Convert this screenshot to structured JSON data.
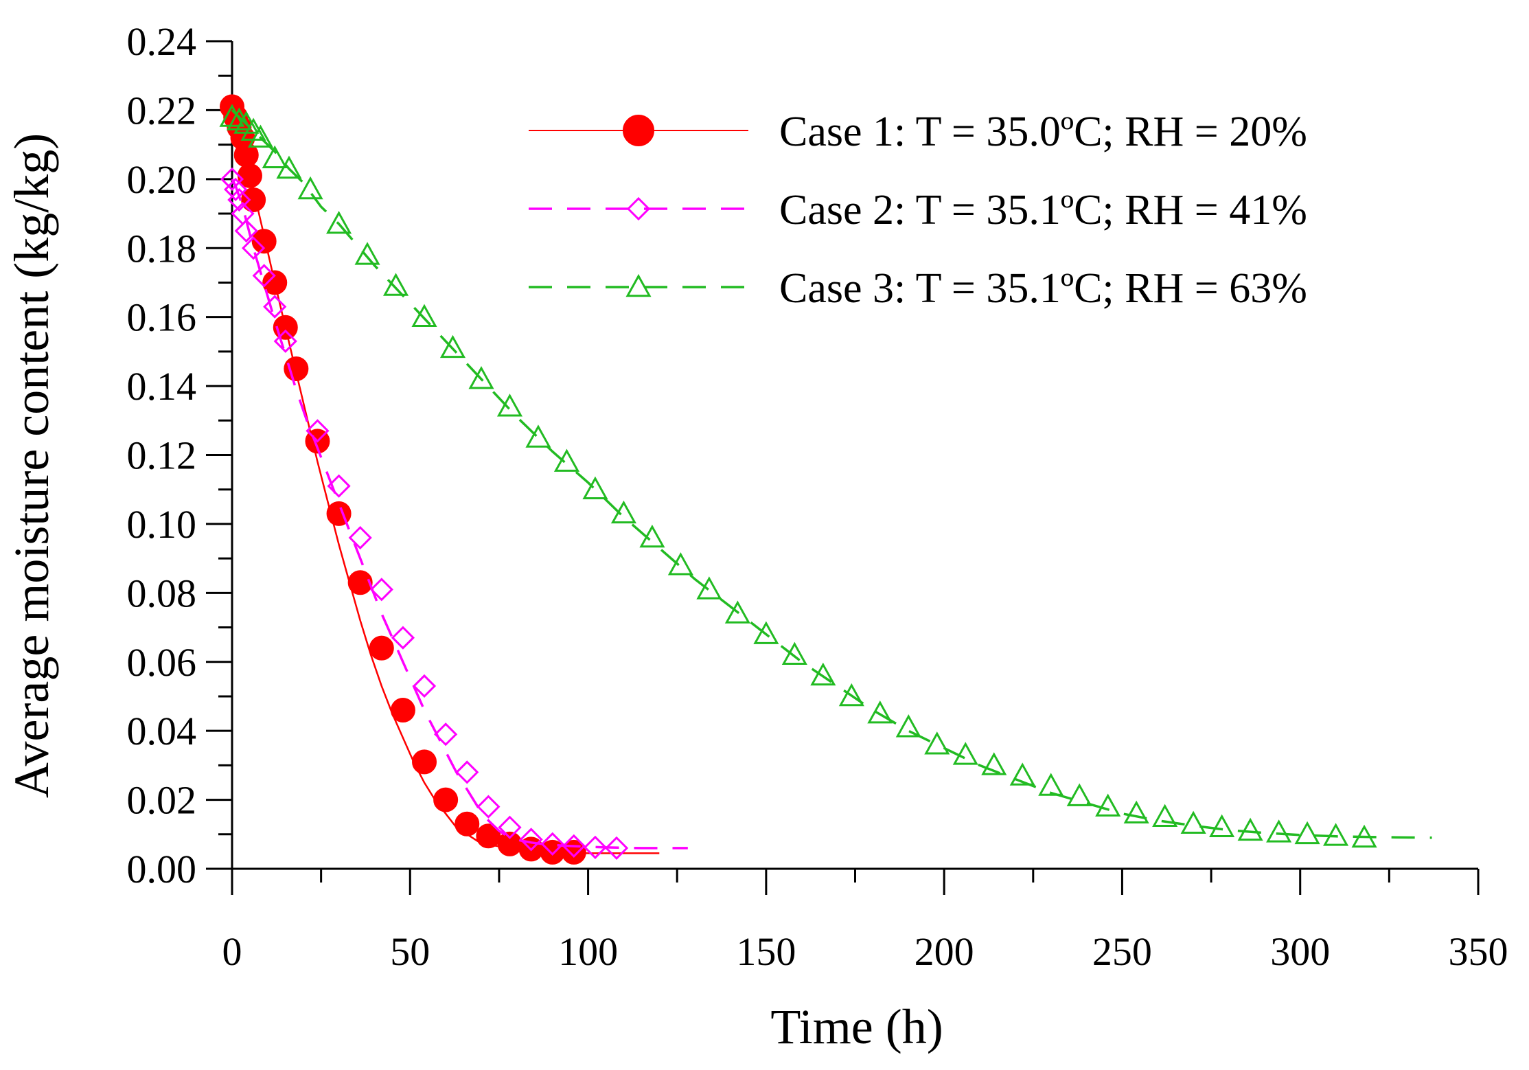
{
  "chart_data": {
    "type": "line",
    "title": "",
    "xlabel": "Time (h)",
    "ylabel": "Average moisture content (kg/kg)",
    "xlim": [
      0,
      350
    ],
    "ylim": [
      0,
      0.24
    ],
    "grid": false,
    "x_major_ticks": [
      0,
      50,
      100,
      150,
      200,
      250,
      300,
      350
    ],
    "x_tick_labels": [
      "0",
      "50",
      "100",
      "150",
      "200",
      "250",
      "300",
      "350"
    ],
    "y_major_ticks": [
      0,
      0.02,
      0.04,
      0.06,
      0.08,
      0.1,
      0.12,
      0.14,
      0.16,
      0.18,
      0.2,
      0.22,
      0.24
    ],
    "y_tick_labels": [
      "0.00",
      "0.02",
      "0.04",
      "0.06",
      "0.08",
      "0.10",
      "0.12",
      "0.14",
      "0.16",
      "0.18",
      "0.20",
      "0.22",
      "0.24"
    ],
    "legend_position": "top-right",
    "series": [
      {
        "name": "Case 1: T = 35.0oC; RH = 20%",
        "legend_label": "Case 1: T = 35.0ºC; RH = 20%",
        "color": "#ff0000",
        "line_style": "solid",
        "marker": "filled-circle",
        "curve_x": [
          0,
          1,
          2,
          3,
          4,
          5,
          6,
          8,
          10,
          12,
          15,
          18,
          21,
          24,
          27,
          30,
          33,
          36,
          39,
          42,
          45,
          48,
          51,
          54,
          57,
          60,
          63,
          66,
          69,
          72,
          75,
          78,
          81,
          84,
          87,
          90,
          93,
          96,
          100,
          105,
          110,
          115,
          120
        ],
        "curve_y": [
          0.221,
          0.218,
          0.215,
          0.211,
          0.207,
          0.202,
          0.197,
          0.188,
          0.179,
          0.17,
          0.157,
          0.144,
          0.131,
          0.118,
          0.106,
          0.094,
          0.083,
          0.072,
          0.062,
          0.053,
          0.045,
          0.038,
          0.031,
          0.025,
          0.02,
          0.016,
          0.012,
          0.01,
          0.008,
          0.007,
          0.0065,
          0.006,
          0.0055,
          0.005,
          0.005,
          0.0048,
          0.0047,
          0.0046,
          0.0045,
          0.0045,
          0.0045,
          0.0045,
          0.0045
        ],
        "points_x": [
          0,
          1,
          2,
          3,
          4,
          5,
          6,
          9,
          12,
          15,
          18,
          24,
          30,
          36,
          42,
          48,
          54,
          60,
          66,
          72,
          78,
          84,
          90,
          96
        ],
        "points_y": [
          0.221,
          0.218,
          0.215,
          0.212,
          0.207,
          0.201,
          0.194,
          0.182,
          0.17,
          0.157,
          0.145,
          0.124,
          0.103,
          0.083,
          0.064,
          0.046,
          0.031,
          0.02,
          0.013,
          0.0095,
          0.0072,
          0.0057,
          0.0048,
          0.0048
        ]
      },
      {
        "name": "Case 2: T = 35.1oC; RH = 41%",
        "legend_label": "Case 2: T = 35.1ºC; RH = 41%",
        "color": "#ff00ff",
        "line_style": "dashed",
        "marker": "open-diamond",
        "curve_x": [
          0,
          1,
          2,
          3,
          4,
          5,
          6,
          8,
          10,
          12,
          15,
          18,
          21,
          24,
          27,
          30,
          33,
          36,
          39,
          42,
          45,
          48,
          51,
          54,
          57,
          60,
          63,
          66,
          69,
          72,
          75,
          78,
          81,
          84,
          87,
          90,
          95,
          100,
          105,
          110,
          115,
          120,
          128
        ],
        "curve_y": [
          0.2,
          0.198,
          0.195,
          0.192,
          0.188,
          0.184,
          0.18,
          0.173,
          0.166,
          0.159,
          0.149,
          0.139,
          0.13,
          0.122,
          0.114,
          0.106,
          0.098,
          0.09,
          0.082,
          0.074,
          0.067,
          0.06,
          0.053,
          0.046,
          0.04,
          0.034,
          0.028,
          0.023,
          0.018,
          0.014,
          0.011,
          0.009,
          0.0082,
          0.0076,
          0.0072,
          0.0069,
          0.0066,
          0.0064,
          0.0062,
          0.0061,
          0.006,
          0.006,
          0.006
        ],
        "points_x": [
          0,
          1,
          2,
          3,
          4,
          6,
          9,
          12,
          15,
          24,
          30,
          36,
          42,
          48,
          54,
          60,
          66,
          72,
          78,
          84,
          90,
          96,
          102,
          108
        ],
        "points_y": [
          0.2,
          0.197,
          0.194,
          0.19,
          0.185,
          0.18,
          0.172,
          0.163,
          0.153,
          0.127,
          0.111,
          0.096,
          0.081,
          0.067,
          0.053,
          0.039,
          0.028,
          0.018,
          0.012,
          0.0085,
          0.0072,
          0.0066,
          0.0062,
          0.006
        ]
      },
      {
        "name": "Case 3: T = 35.1oC; RH = 63%",
        "legend_label": "Case 3: T = 35.1ºC; RH = 63%",
        "color": "#22bb22",
        "line_style": "dashed",
        "marker": "open-triangle",
        "curve_x": [
          0,
          4,
          8,
          12,
          16,
          20,
          25,
          30,
          40,
          50,
          60,
          70,
          80,
          90,
          100,
          110,
          120,
          130,
          140,
          150,
          160,
          170,
          180,
          190,
          200,
          210,
          220,
          230,
          240,
          250,
          260,
          270,
          280,
          290,
          300,
          310,
          320,
          337
        ],
        "curve_y": [
          0.22,
          0.216,
          0.212,
          0.208,
          0.203,
          0.199,
          0.192,
          0.187,
          0.175,
          0.164,
          0.153,
          0.142,
          0.131,
          0.121,
          0.112,
          0.102,
          0.093,
          0.084,
          0.076,
          0.068,
          0.06,
          0.053,
          0.046,
          0.04,
          0.035,
          0.03,
          0.026,
          0.022,
          0.019,
          0.016,
          0.014,
          0.0125,
          0.0112,
          0.0104,
          0.0098,
          0.0094,
          0.0092,
          0.009
        ],
        "points_x": [
          0,
          2,
          4,
          6,
          8,
          12,
          16,
          22,
          30,
          38,
          46,
          54,
          62,
          70,
          78,
          86,
          94,
          102,
          110,
          118,
          126,
          134,
          142,
          150,
          158,
          166,
          174,
          182,
          190,
          198,
          206,
          214,
          222,
          230,
          238,
          246,
          254,
          262,
          270,
          278,
          286,
          294,
          302,
          310,
          318
        ],
        "points_y": [
          0.218,
          0.217,
          0.216,
          0.214,
          0.212,
          0.206,
          0.203,
          0.197,
          0.187,
          0.178,
          0.169,
          0.16,
          0.151,
          0.142,
          0.134,
          0.125,
          0.118,
          0.11,
          0.103,
          0.096,
          0.088,
          0.081,
          0.074,
          0.068,
          0.062,
          0.056,
          0.05,
          0.045,
          0.041,
          0.036,
          0.033,
          0.03,
          0.027,
          0.024,
          0.021,
          0.018,
          0.016,
          0.015,
          0.013,
          0.012,
          0.011,
          0.0105,
          0.01,
          0.0095,
          0.009
        ]
      }
    ]
  }
}
